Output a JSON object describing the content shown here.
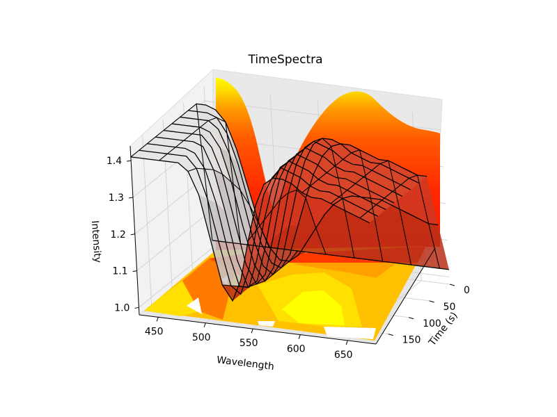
{
  "chart_data": {
    "type": "surface3d",
    "title": "TimeSpectra",
    "xlabel": "Wavelength",
    "ylabel": "Time (s)",
    "zlabel": "Intensity",
    "xlim": [
      430,
      680
    ],
    "ylim": [
      0,
      180
    ],
    "zlim": [
      0.98,
      1.44
    ],
    "xticks": [
      "450",
      "500",
      "550",
      "600",
      "650"
    ],
    "yticks": [
      "0",
      "50",
      "100",
      "150"
    ],
    "zticks": [
      "1.0",
      "1.1",
      "1.2",
      "1.3",
      "1.4"
    ],
    "grid": true,
    "colormap": [
      "#ffff00",
      "#ffd700",
      "#ffb000",
      "#ff8c00",
      "#ff6400",
      "#ff3c00",
      "#ff1a00"
    ],
    "wavelength_samples": [
      430,
      440,
      450,
      460,
      470,
      480,
      490,
      500,
      510,
      520,
      530,
      540,
      550,
      560,
      570,
      580,
      590,
      600,
      610,
      620,
      630,
      640,
      650,
      660,
      670,
      680
    ],
    "time_samples": [
      0,
      20,
      40,
      60,
      80,
      100,
      120,
      140,
      160,
      180
    ],
    "spectra": [
      {
        "t": 0,
        "intensity": [
          1.02,
          1.02,
          1.02,
          1.02,
          1.02,
          1.02,
          1.02,
          1.02,
          1.02,
          1.02,
          1.02,
          1.02,
          1.02,
          1.02,
          1.02,
          1.02,
          1.02,
          1.02,
          1.02,
          1.02,
          1.02,
          1.02,
          1.02,
          1.02,
          1.02,
          1.02
        ]
      },
      {
        "t": 20,
        "intensity": [
          1.41,
          1.41,
          1.4,
          1.37,
          1.3,
          1.2,
          1.1,
          1.04,
          1.01,
          1.01,
          1.03,
          1.07,
          1.11,
          1.15,
          1.18,
          1.2,
          1.21,
          1.21,
          1.21,
          1.21,
          1.2,
          1.19,
          1.18,
          1.17,
          1.16,
          1.16
        ]
      },
      {
        "t": 40,
        "intensity": [
          1.41,
          1.41,
          1.41,
          1.4,
          1.36,
          1.28,
          1.17,
          1.07,
          1.02,
          1.01,
          1.05,
          1.13,
          1.21,
          1.28,
          1.33,
          1.36,
          1.37,
          1.37,
          1.36,
          1.35,
          1.34,
          1.34,
          1.33,
          1.32,
          1.31,
          1.31
        ]
      },
      {
        "t": 60,
        "intensity": [
          1.41,
          1.41,
          1.41,
          1.41,
          1.39,
          1.33,
          1.23,
          1.11,
          1.03,
          1.01,
          1.05,
          1.15,
          1.25,
          1.33,
          1.38,
          1.4,
          1.4,
          1.39,
          1.37,
          1.36,
          1.35,
          1.35,
          1.34,
          1.33,
          1.32,
          1.31
        ]
      },
      {
        "t": 80,
        "intensity": [
          1.41,
          1.41,
          1.41,
          1.41,
          1.4,
          1.36,
          1.27,
          1.15,
          1.05,
          1.01,
          1.05,
          1.15,
          1.26,
          1.34,
          1.39,
          1.41,
          1.4,
          1.39,
          1.37,
          1.36,
          1.36,
          1.35,
          1.34,
          1.33,
          1.32,
          1.31
        ]
      },
      {
        "t": 100,
        "intensity": [
          1.41,
          1.41,
          1.41,
          1.41,
          1.41,
          1.38,
          1.31,
          1.19,
          1.07,
          1.02,
          1.05,
          1.15,
          1.26,
          1.34,
          1.39,
          1.41,
          1.4,
          1.39,
          1.37,
          1.36,
          1.36,
          1.35,
          1.34,
          1.33,
          1.32,
          1.31
        ]
      },
      {
        "t": 120,
        "intensity": [
          1.41,
          1.41,
          1.41,
          1.41,
          1.41,
          1.4,
          1.34,
          1.23,
          1.1,
          1.03,
          1.05,
          1.14,
          1.25,
          1.34,
          1.39,
          1.41,
          1.4,
          1.39,
          1.37,
          1.36,
          1.36,
          1.35,
          1.34,
          1.33,
          1.32,
          1.31
        ]
      },
      {
        "t": 140,
        "intensity": [
          1.41,
          1.41,
          1.41,
          1.41,
          1.41,
          1.4,
          1.36,
          1.27,
          1.14,
          1.05,
          1.05,
          1.13,
          1.24,
          1.33,
          1.39,
          1.41,
          1.4,
          1.39,
          1.37,
          1.36,
          1.36,
          1.35,
          1.34,
          1.33,
          1.32,
          1.31
        ]
      },
      {
        "t": 160,
        "intensity": [
          1.41,
          1.41,
          1.41,
          1.41,
          1.41,
          1.41,
          1.38,
          1.3,
          1.18,
          1.07,
          1.05,
          1.12,
          1.23,
          1.33,
          1.38,
          1.41,
          1.4,
          1.39,
          1.37,
          1.36,
          1.36,
          1.35,
          1.34,
          1.33,
          1.32,
          1.31
        ]
      },
      {
        "t": 180,
        "intensity": [
          1.41,
          1.41,
          1.41,
          1.41,
          1.41,
          1.41,
          1.39,
          1.33,
          1.21,
          1.09,
          1.05,
          1.11,
          1.22,
          1.32,
          1.38,
          1.4,
          1.4,
          1.39,
          1.37,
          1.36,
          1.36,
          1.35,
          1.34,
          1.33,
          1.32,
          1.31
        ]
      }
    ]
  }
}
